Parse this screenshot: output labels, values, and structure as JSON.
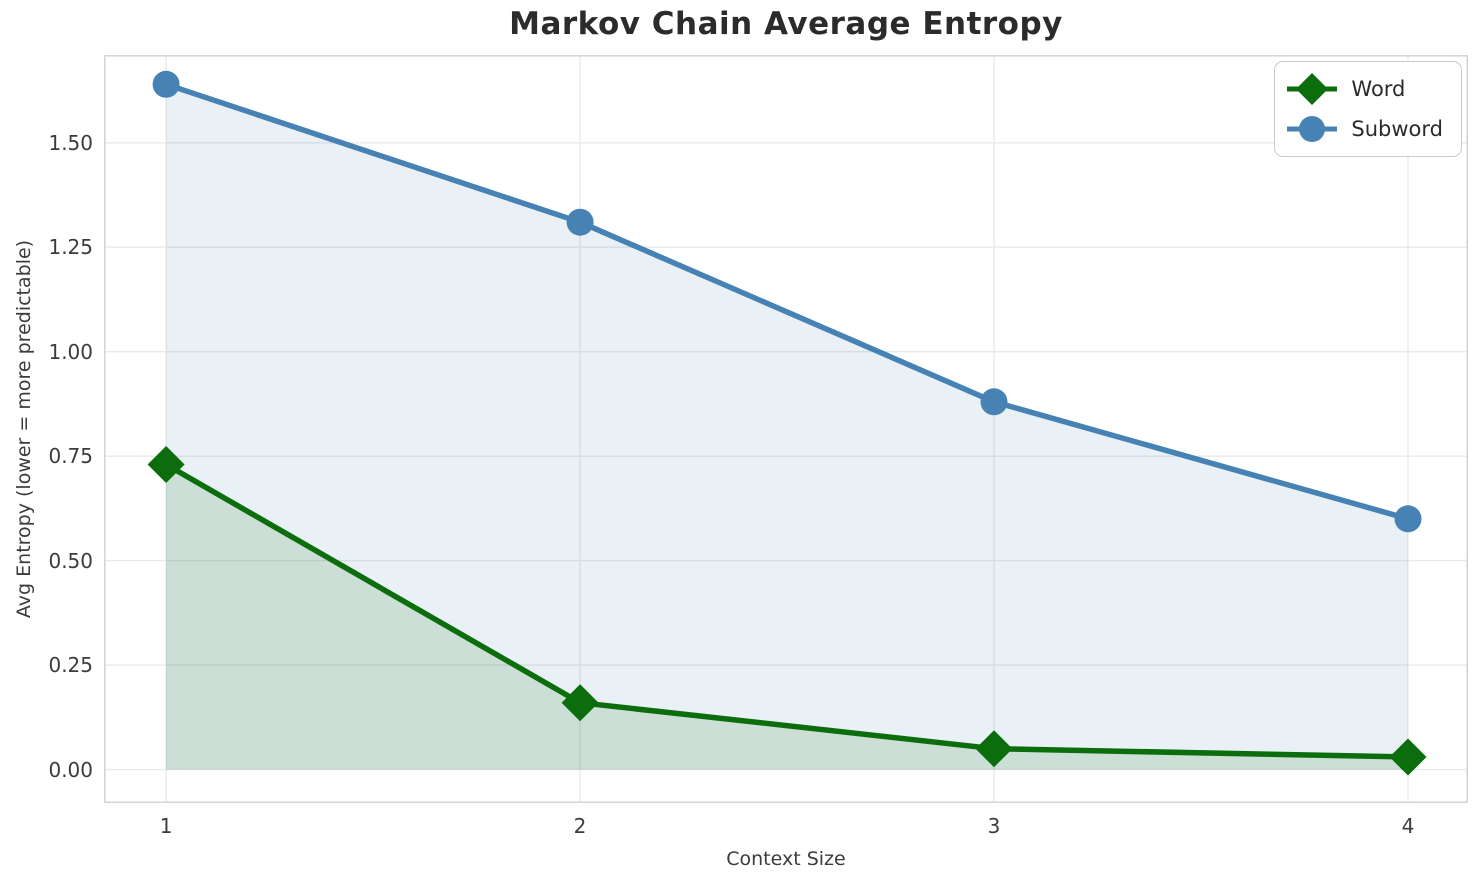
{
  "chart_data": {
    "type": "line",
    "title": "Markov Chain Average Entropy",
    "xlabel": "Context Size",
    "ylabel": "Avg Entropy (lower = more predictable)",
    "x": [
      1,
      2,
      3,
      4
    ],
    "series": [
      {
        "name": "Word",
        "marker": "diamond",
        "color": "#0b6d0b",
        "fill": "rgba(11, 109, 11, 0.13)",
        "values": [
          0.73,
          0.16,
          0.05,
          0.03
        ]
      },
      {
        "name": "Subword",
        "marker": "circle",
        "color": "#4682b4",
        "fill": "rgba(70, 130, 180, 0.12)",
        "values": [
          1.64,
          1.31,
          0.88,
          0.6
        ]
      }
    ],
    "x_ticks": [
      "1",
      "2",
      "3",
      "4"
    ],
    "y_ticks": [
      "0.00",
      "0.25",
      "0.50",
      "0.75",
      "1.00",
      "1.25",
      "1.50"
    ],
    "xlim": [
      0.85,
      4.145
    ],
    "ylim": [
      -0.08,
      1.71
    ],
    "grid": true,
    "legend_position": "upper right",
    "legend": [
      "Word",
      "Subword"
    ],
    "area_fill_baseline": 0.0
  }
}
